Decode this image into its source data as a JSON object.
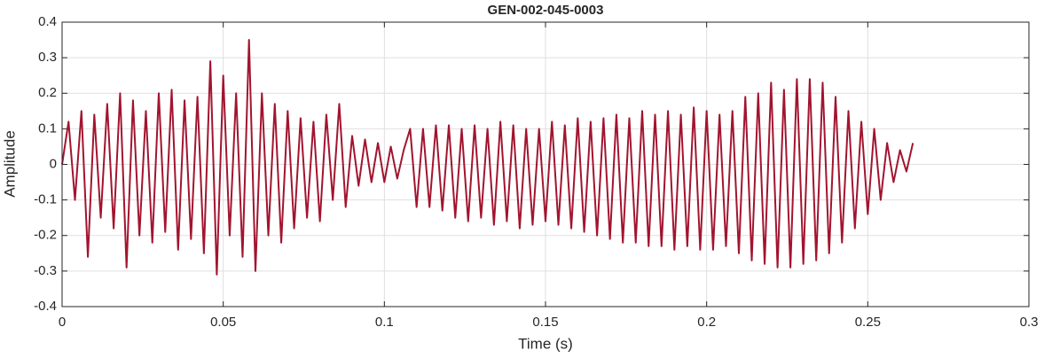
{
  "chart_data": {
    "type": "line",
    "title": "GEN-002-045-0003",
    "xlabel": "Time (s)",
    "ylabel": "Amplitude",
    "x": [
      0,
      0.002,
      0.004,
      0.006,
      0.008,
      0.01,
      0.012,
      0.014,
      0.016,
      0.018,
      0.02,
      0.022,
      0.024,
      0.026,
      0.028,
      0.03,
      0.032,
      0.034,
      0.036,
      0.038,
      0.04,
      0.042,
      0.044,
      0.046,
      0.048,
      0.05,
      0.052,
      0.054,
      0.056,
      0.058,
      0.06,
      0.062,
      0.064,
      0.066,
      0.068,
      0.07,
      0.072,
      0.074,
      0.076,
      0.078,
      0.08,
      0.082,
      0.084,
      0.086,
      0.088,
      0.09,
      0.092,
      0.094,
      0.096,
      0.098,
      0.1,
      0.102,
      0.104,
      0.106,
      0.108,
      0.11,
      0.112,
      0.114,
      0.116,
      0.118,
      0.12,
      0.122,
      0.124,
      0.126,
      0.128,
      0.13,
      0.132,
      0.134,
      0.136,
      0.138,
      0.14,
      0.142,
      0.144,
      0.146,
      0.148,
      0.15,
      0.152,
      0.154,
      0.156,
      0.158,
      0.16,
      0.162,
      0.164,
      0.166,
      0.168,
      0.17,
      0.172,
      0.174,
      0.176,
      0.178,
      0.18,
      0.182,
      0.184,
      0.186,
      0.188,
      0.19,
      0.192,
      0.194,
      0.196,
      0.198,
      0.2,
      0.202,
      0.204,
      0.206,
      0.208,
      0.21,
      0.212,
      0.214,
      0.216,
      0.218,
      0.22,
      0.222,
      0.224,
      0.226,
      0.228,
      0.23,
      0.232,
      0.234,
      0.236,
      0.238,
      0.24,
      0.242,
      0.244,
      0.246,
      0.248,
      0.25,
      0.252,
      0.254,
      0.256,
      0.258,
      0.26,
      0.262,
      0.264
    ],
    "values": [
      0,
      0.12,
      -0.1,
      0.15,
      -0.26,
      0.14,
      -0.15,
      0.17,
      -0.18,
      0.2,
      -0.29,
      0.18,
      -0.2,
      0.15,
      -0.22,
      0.2,
      -0.19,
      0.21,
      -0.24,
      0.18,
      -0.21,
      0.19,
      -0.25,
      0.29,
      -0.31,
      0.25,
      -0.2,
      0.2,
      -0.26,
      0.35,
      -0.3,
      0.2,
      -0.2,
      0.17,
      -0.22,
      0.15,
      -0.18,
      0.13,
      -0.15,
      0.12,
      -0.16,
      0.14,
      -0.1,
      0.17,
      -0.12,
      0.08,
      -0.06,
      0.07,
      -0.05,
      0.06,
      -0.05,
      0.05,
      -0.04,
      0.04,
      0.1,
      -0.12,
      0.1,
      -0.12,
      0.11,
      -0.13,
      0.11,
      -0.15,
      0.1,
      -0.16,
      0.11,
      -0.15,
      0.1,
      -0.17,
      0.12,
      -0.16,
      0.11,
      -0.18,
      0.1,
      -0.17,
      0.1,
      -0.16,
      0.12,
      -0.17,
      0.11,
      -0.18,
      0.13,
      -0.19,
      0.12,
      -0.2,
      0.13,
      -0.21,
      0.14,
      -0.22,
      0.13,
      -0.22,
      0.15,
      -0.23,
      0.14,
      -0.23,
      0.15,
      -0.24,
      0.14,
      -0.23,
      0.16,
      -0.24,
      0.15,
      -0.24,
      0.14,
      -0.23,
      0.15,
      -0.25,
      0.19,
      -0.27,
      0.2,
      -0.28,
      0.23,
      -0.29,
      0.21,
      -0.29,
      0.24,
      -0.28,
      0.24,
      -0.27,
      0.23,
      -0.25,
      0.19,
      -0.22,
      0.15,
      -0.18,
      0.12,
      -0.14,
      0.1,
      -0.1,
      0.06,
      -0.05,
      0.04,
      -0.02,
      0.06
    ],
    "color": "#a2142f",
    "xlim": [
      0,
      0.3
    ],
    "xticks": [
      0,
      0.05,
      0.1,
      0.15,
      0.2,
      0.25,
      0.3
    ],
    "ylim": [
      -0.4,
      0.4
    ],
    "yticks": [
      -0.4,
      -0.3,
      -0.2,
      -0.1,
      0,
      0.1,
      0.2,
      0.3,
      0.4
    ],
    "grid": true
  }
}
